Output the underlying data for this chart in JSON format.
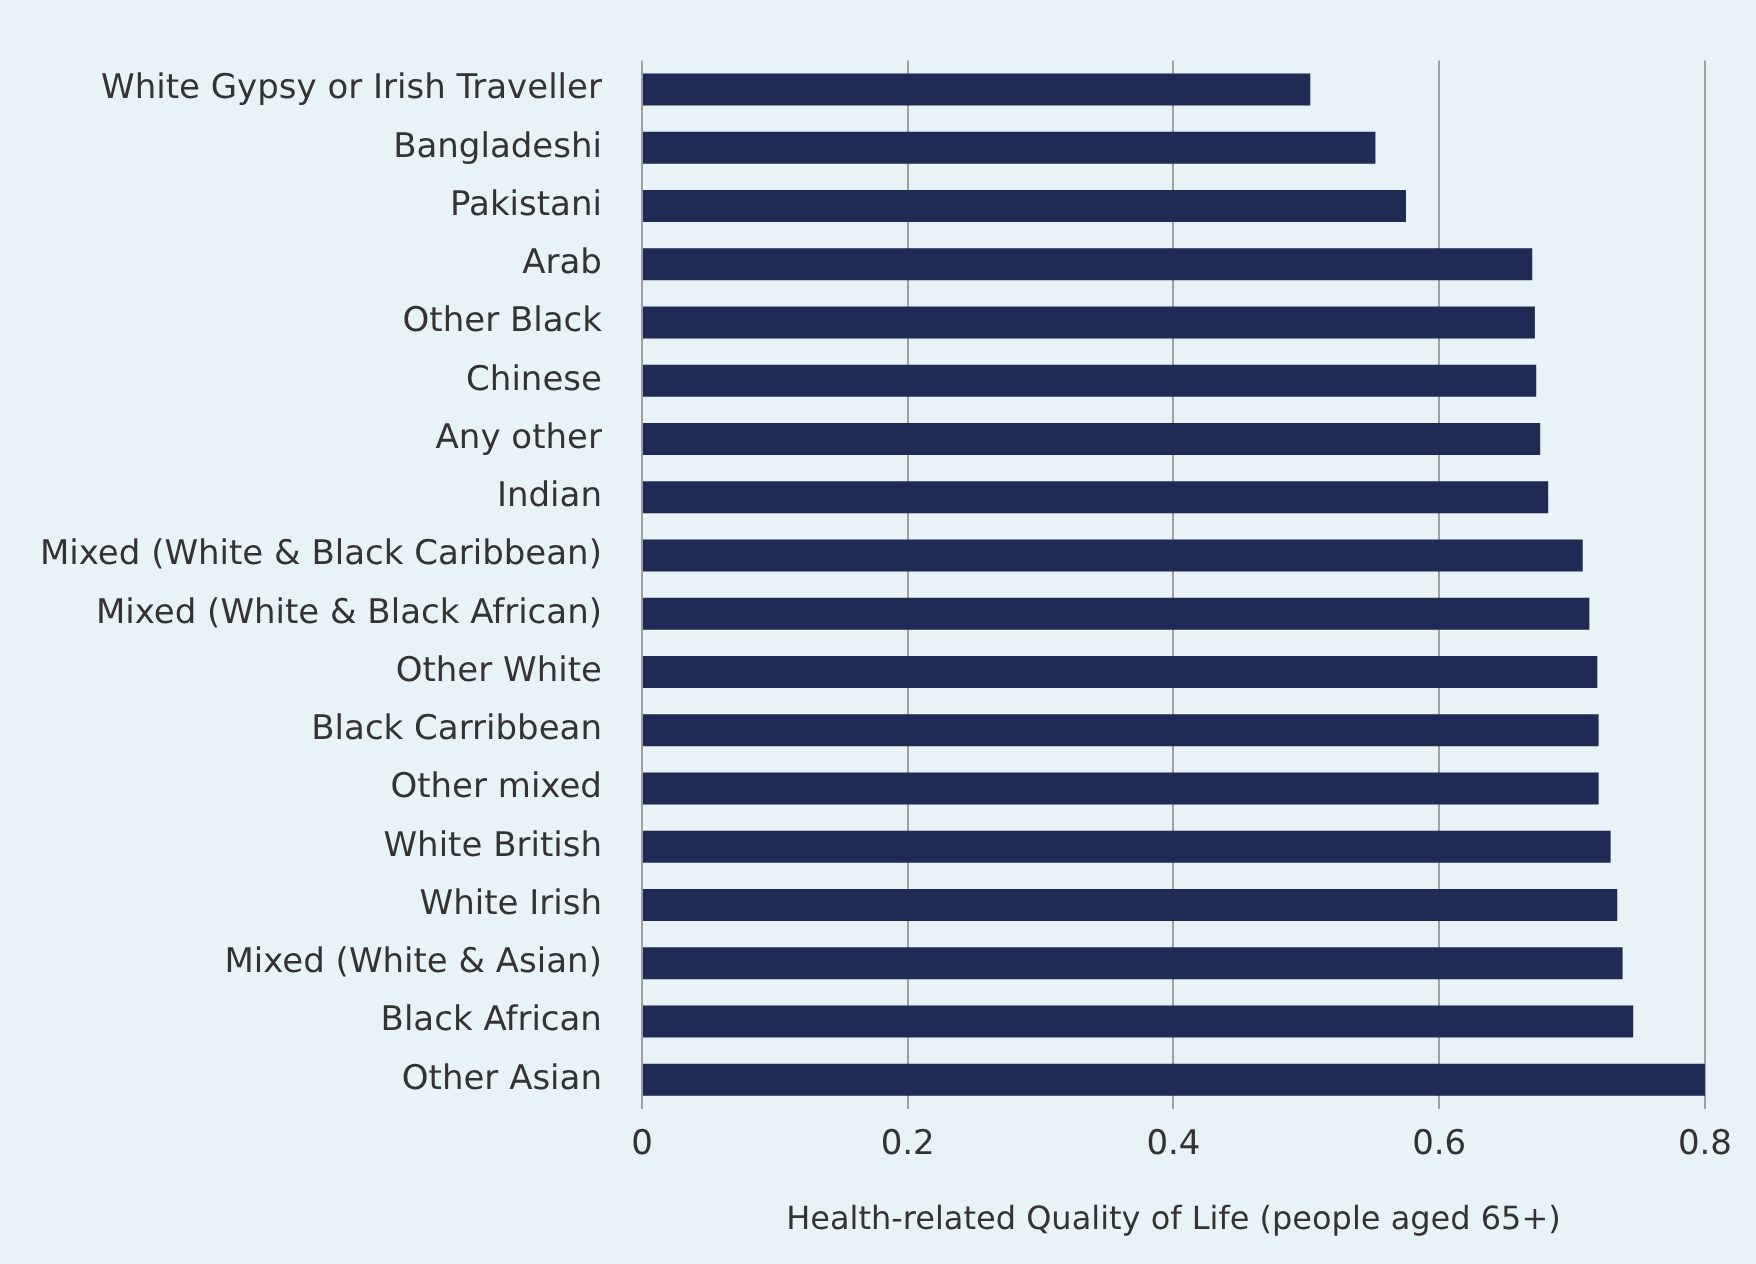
{
  "chart_data": {
    "type": "bar",
    "orientation": "horizontal",
    "xlabel": "Health-related Quality of Life (people aged 65+)",
    "categories": [
      "White Gypsy or Irish Traveller",
      "Bangladeshi",
      "Pakistani",
      "Arab",
      "Other Black",
      "Chinese",
      "Any other",
      "Indian",
      "Mixed (White & Black Caribbean)",
      "Mixed (White & Black African)",
      "Other White",
      "Black Carribbean",
      "Other mixed",
      "White British",
      "White Irish",
      "Mixed (White & Asian)",
      "Black African",
      "Other Asian"
    ],
    "values": [
      0.503,
      0.552,
      0.575,
      0.67,
      0.672,
      0.673,
      0.676,
      0.682,
      0.708,
      0.713,
      0.719,
      0.72,
      0.72,
      0.729,
      0.734,
      0.738,
      0.746,
      0.8
    ],
    "color": "#1f2a55",
    "xlim": [
      0,
      0.8
    ],
    "xticks": [
      0,
      0.2,
      0.4,
      0.6,
      0.8
    ],
    "grid": "x",
    "legend": false
  }
}
